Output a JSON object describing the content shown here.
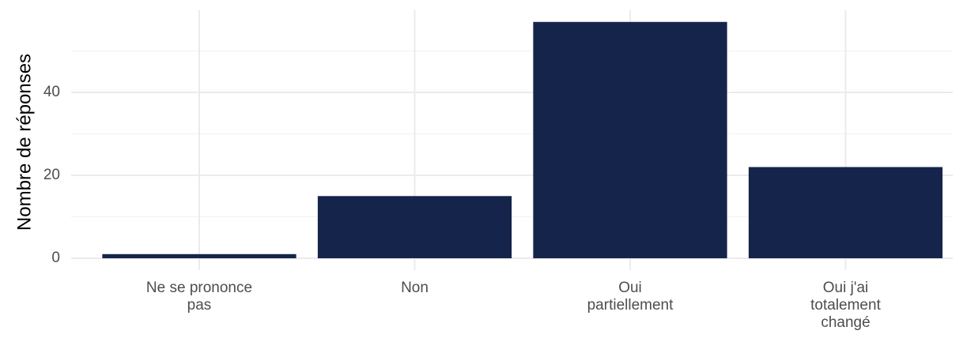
{
  "chart_data": {
    "type": "bar",
    "y_label": "Nombre de réponses",
    "categories": [
      "Ne se prononce\npas",
      "Non",
      "Oui\npartiellement",
      "Oui j'ai\ntotalement\nchangé"
    ],
    "values": [
      1,
      15,
      57,
      22
    ],
    "color": "#15244a",
    "ylim": [
      -2.85,
      59.85
    ],
    "yticks": [
      0,
      20,
      40
    ],
    "minor_yticks": [
      10,
      30,
      50
    ],
    "grid": true
  }
}
